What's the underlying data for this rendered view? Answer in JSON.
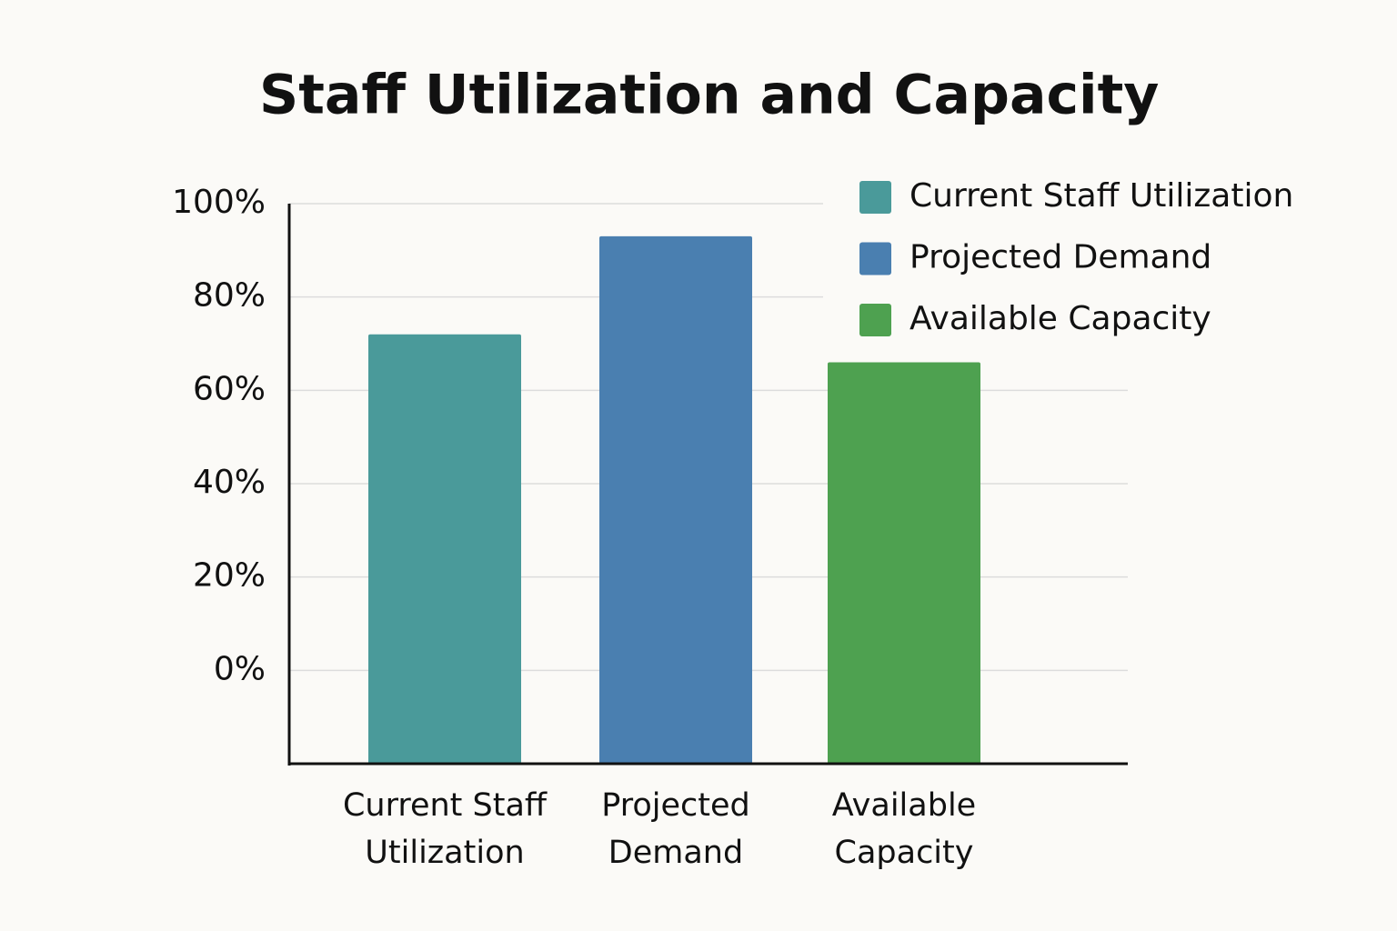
{
  "chart_data": {
    "type": "bar",
    "title": "Staff Utilization and Capacity",
    "categories": [
      "Current Staff Utilization",
      "Projected Demand",
      "Available Capacity"
    ],
    "values": [
      72,
      93,
      66
    ],
    "colors": [
      "#4a9a9a",
      "#4a7fb0",
      "#4ea150"
    ],
    "ylim": [
      -20,
      100
    ],
    "yticks": [
      {
        "value": 0,
        "label": "0%"
      },
      {
        "value": 20,
        "label": "20%"
      },
      {
        "value": 40,
        "label": "40%"
      },
      {
        "value": 60,
        "label": "60%"
      },
      {
        "value": 80,
        "label": "80%"
      },
      {
        "value": 100,
        "label": "100%"
      }
    ],
    "grid": true,
    "legend": "top-right"
  }
}
